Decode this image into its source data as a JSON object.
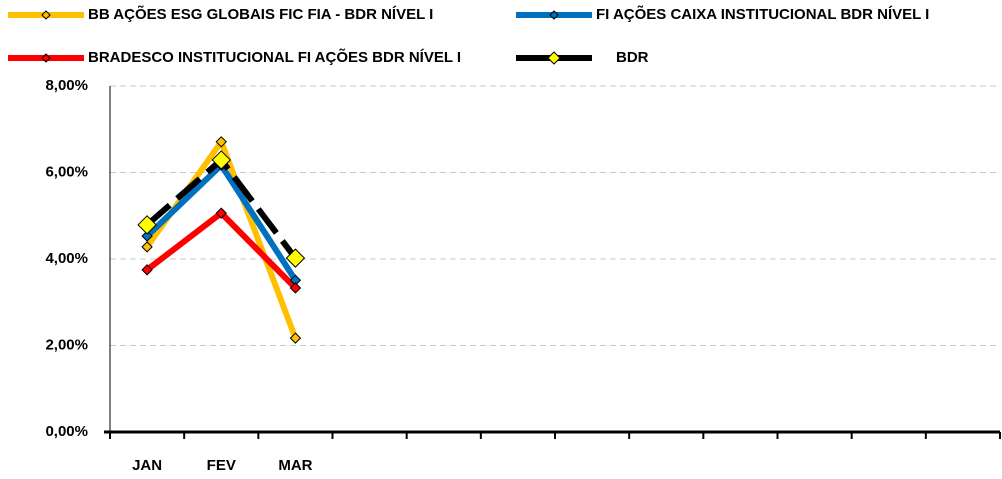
{
  "chart_data": {
    "type": "line",
    "categories": [
      "JAN",
      "FEV",
      "MAR",
      null,
      null,
      null,
      null,
      null,
      null,
      null,
      null,
      null
    ],
    "series": [
      {
        "name": "BB AÇÕES ESG GLOBAIS FIC FIA - BDR NÍVEL I",
        "color": "#FFC000",
        "values": [
          4.28,
          6.71,
          2.17,
          null,
          null,
          null,
          null,
          null,
          null,
          null,
          null,
          null
        ]
      },
      {
        "name": "FI AÇÕES CAIXA INSTITUCIONAL BDR NÍVEL I",
        "color": "#0070C0",
        "values": [
          4.53,
          6.17,
          3.51,
          null,
          null,
          null,
          null,
          null,
          null,
          null,
          null,
          null
        ]
      },
      {
        "name": "BRADESCO INSTITUCIONAL FI AÇÕES BDR NÍVEL I",
        "color": "#FF0000",
        "values": [
          3.75,
          5.06,
          3.33,
          null,
          null,
          null,
          null,
          null,
          null,
          null,
          null,
          null
        ]
      },
      {
        "name": "BDR",
        "color": "#000000",
        "marker_color": "#FFFF00",
        "line_style": "dashed",
        "values": [
          4.79,
          6.29,
          4.02,
          null,
          null,
          null,
          null,
          null,
          null,
          null,
          null,
          null
        ]
      }
    ],
    "ylim": [
      0,
      8
    ],
    "yticks": [
      {
        "value": 0,
        "label": "0,00%"
      },
      {
        "value": 2,
        "label": "2,00%"
      },
      {
        "value": 4,
        "label": "4,00%"
      },
      {
        "value": 6,
        "label": "6,00%"
      },
      {
        "value": 8,
        "label": "8,00%"
      }
    ],
    "grid": true
  }
}
